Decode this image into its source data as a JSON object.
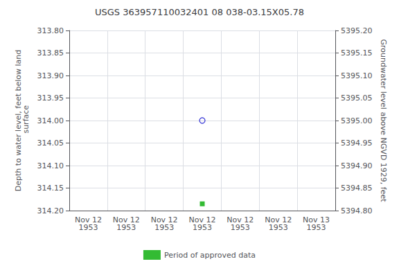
{
  "chart_data": {
    "type": "scatter",
    "title": "USGS 363957110032401 08 038-03.15X05.78",
    "y_label": "Depth to water level, feet below land\n surface",
    "y2_label": "Groundwater level above NGVD 1929, feet",
    "categories": [
      "Nov 12\n1953",
      "Nov 12\n1953",
      "Nov 12\n1953",
      "Nov 12\n1953",
      "Nov 12\n1953",
      "Nov 12\n1953",
      "Nov 13\n1953"
    ],
    "series": [
      {
        "color": "#0000cc",
        "marker": "open_circle",
        "values": [
          null,
          null,
          null,
          314.0,
          null,
          null,
          null
        ]
      },
      {
        "name": "Period of approved data",
        "color": "#00aa00",
        "marker": "square",
        "values": [
          null,
          null,
          null,
          314.185,
          null,
          null,
          null
        ]
      }
    ],
    "ylim": [
      314.2,
      313.8
    ],
    "yticks": [
      {
        "value": 313.8,
        "label": "313.80"
      },
      313.85,
      {
        "value": 313.9,
        "label": "313.90"
      },
      313.95,
      {
        "value": 314.0,
        "label": "314.00"
      },
      314.05,
      {
        "value": 314.1,
        "label": "314.10"
      },
      314.15,
      {
        "value": 314.2,
        "label": "314.20"
      }
    ],
    "y2lim": [
      5394.8,
      5395.2
    ],
    "y2ticks": [
      {
        "value": 5394.8,
        "label": "5394.80"
      },
      5394.85,
      {
        "value": 5394.9,
        "label": "5394.90"
      },
      5394.95,
      {
        "value": 5395.0,
        "label": "5395.00"
      },
      5395.05,
      {
        "value": 5395.1,
        "label": "5395.10"
      },
      5395.15,
      {
        "value": 5395.2,
        "label": "5395.20"
      }
    ],
    "grid": true,
    "legend": "bottom"
  }
}
